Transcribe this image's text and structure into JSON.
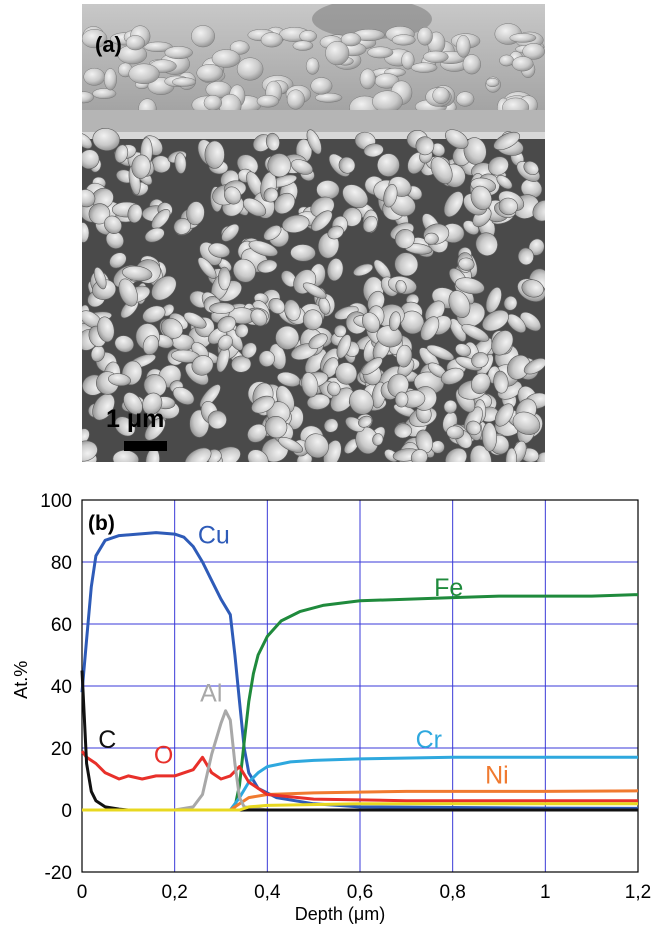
{
  "figure": {
    "panel_a": {
      "label": "(a)",
      "scale_bar": "1 μm"
    },
    "panel_b": {
      "label": "(b)"
    }
  },
  "chart_data": {
    "type": "line",
    "xlabel": "Depth (μm)",
    "ylabel": "At.%",
    "xlim": [
      0,
      1.2
    ],
    "ylim": [
      -20,
      100
    ],
    "x_ticks": [
      "0",
      "0,2",
      "0,4",
      "0,6",
      "0,8",
      "1",
      "1,2"
    ],
    "y_ticks": [
      "-20",
      "0",
      "20",
      "40",
      "60",
      "80",
      "100"
    ],
    "grid": true,
    "series": [
      {
        "name": "Cu",
        "color": "#2e5bb8",
        "label_at": [
          0.25,
          86
        ],
        "points": [
          [
            0,
            38
          ],
          [
            0.01,
            55
          ],
          [
            0.02,
            72
          ],
          [
            0.03,
            82
          ],
          [
            0.05,
            87
          ],
          [
            0.08,
            88.5
          ],
          [
            0.12,
            89
          ],
          [
            0.16,
            89.5
          ],
          [
            0.2,
            89
          ],
          [
            0.22,
            88
          ],
          [
            0.24,
            85
          ],
          [
            0.26,
            80
          ],
          [
            0.28,
            74
          ],
          [
            0.3,
            68
          ],
          [
            0.32,
            63
          ],
          [
            0.33,
            50
          ],
          [
            0.34,
            35
          ],
          [
            0.35,
            20
          ],
          [
            0.36,
            12
          ],
          [
            0.38,
            7
          ],
          [
            0.42,
            4
          ],
          [
            0.5,
            2
          ],
          [
            0.6,
            1
          ],
          [
            0.8,
            0.8
          ],
          [
            1.0,
            0.6
          ],
          [
            1.2,
            0.5
          ]
        ]
      },
      {
        "name": "Fe",
        "color": "#1f8a3c",
        "label_at": [
          0.76,
          69
        ],
        "points": [
          [
            0,
            0
          ],
          [
            0.32,
            0
          ],
          [
            0.33,
            1
          ],
          [
            0.34,
            8
          ],
          [
            0.35,
            22
          ],
          [
            0.36,
            35
          ],
          [
            0.37,
            44
          ],
          [
            0.38,
            50
          ],
          [
            0.4,
            56
          ],
          [
            0.43,
            61
          ],
          [
            0.47,
            64
          ],
          [
            0.52,
            66
          ],
          [
            0.6,
            67.5
          ],
          [
            0.7,
            68
          ],
          [
            0.8,
            68.5
          ],
          [
            0.9,
            69
          ],
          [
            1.0,
            69
          ],
          [
            1.1,
            69
          ],
          [
            1.2,
            69.5
          ]
        ]
      },
      {
        "name": "Cr",
        "color": "#2ea8de",
        "label_at": [
          0.72,
          20
        ],
        "points": [
          [
            0,
            0
          ],
          [
            0.32,
            0
          ],
          [
            0.34,
            4
          ],
          [
            0.36,
            9
          ],
          [
            0.38,
            12
          ],
          [
            0.4,
            14
          ],
          [
            0.45,
            15.5
          ],
          [
            0.5,
            16
          ],
          [
            0.6,
            16.5
          ],
          [
            0.8,
            17
          ],
          [
            1.0,
            17
          ],
          [
            1.2,
            17
          ]
        ]
      },
      {
        "name": "Ni",
        "color": "#f07a30",
        "label_at": [
          0.87,
          8.5
        ],
        "points": [
          [
            0,
            0
          ],
          [
            0.32,
            0
          ],
          [
            0.34,
            2
          ],
          [
            0.36,
            4
          ],
          [
            0.4,
            5
          ],
          [
            0.5,
            5.5
          ],
          [
            0.7,
            6
          ],
          [
            1.0,
            6
          ],
          [
            1.2,
            6.2
          ]
        ]
      },
      {
        "name": "O",
        "color": "#e8302a",
        "label_at": [
          0.155,
          15
        ],
        "points": [
          [
            0,
            19
          ],
          [
            0.01,
            17
          ],
          [
            0.03,
            15
          ],
          [
            0.05,
            12
          ],
          [
            0.08,
            10
          ],
          [
            0.1,
            11
          ],
          [
            0.13,
            10
          ],
          [
            0.16,
            11
          ],
          [
            0.2,
            11
          ],
          [
            0.24,
            13
          ],
          [
            0.26,
            17
          ],
          [
            0.28,
            12
          ],
          [
            0.3,
            10
          ],
          [
            0.32,
            11
          ],
          [
            0.34,
            14
          ],
          [
            0.36,
            9
          ],
          [
            0.4,
            5
          ],
          [
            0.5,
            3.5
          ],
          [
            0.7,
            3
          ],
          [
            1.0,
            3
          ],
          [
            1.2,
            3
          ]
        ]
      },
      {
        "name": "Al",
        "color": "#a8a8a8",
        "label_at": [
          0.255,
          35
        ],
        "points": [
          [
            0,
            0
          ],
          [
            0.2,
            0
          ],
          [
            0.24,
            1
          ],
          [
            0.26,
            5
          ],
          [
            0.28,
            18
          ],
          [
            0.3,
            28
          ],
          [
            0.31,
            32
          ],
          [
            0.32,
            29
          ],
          [
            0.33,
            15
          ],
          [
            0.34,
            4
          ],
          [
            0.35,
            1
          ],
          [
            0.4,
            0
          ],
          [
            1.2,
            0
          ]
        ]
      },
      {
        "name": "C",
        "color": "#111111",
        "label_at": [
          0.035,
          20
        ],
        "points": [
          [
            0,
            45
          ],
          [
            0.005,
            30
          ],
          [
            0.01,
            15
          ],
          [
            0.02,
            6
          ],
          [
            0.03,
            3
          ],
          [
            0.05,
            1
          ],
          [
            0.08,
            0.3
          ],
          [
            0.1,
            0
          ],
          [
            1.2,
            0
          ]
        ]
      },
      {
        "name": "",
        "color": "#e8d820",
        "label_at": null,
        "points": [
          [
            0,
            0
          ],
          [
            0.34,
            0
          ],
          [
            0.36,
            1
          ],
          [
            0.4,
            1.5
          ],
          [
            0.6,
            2
          ],
          [
            1.0,
            2
          ],
          [
            1.2,
            2
          ]
        ]
      }
    ]
  }
}
